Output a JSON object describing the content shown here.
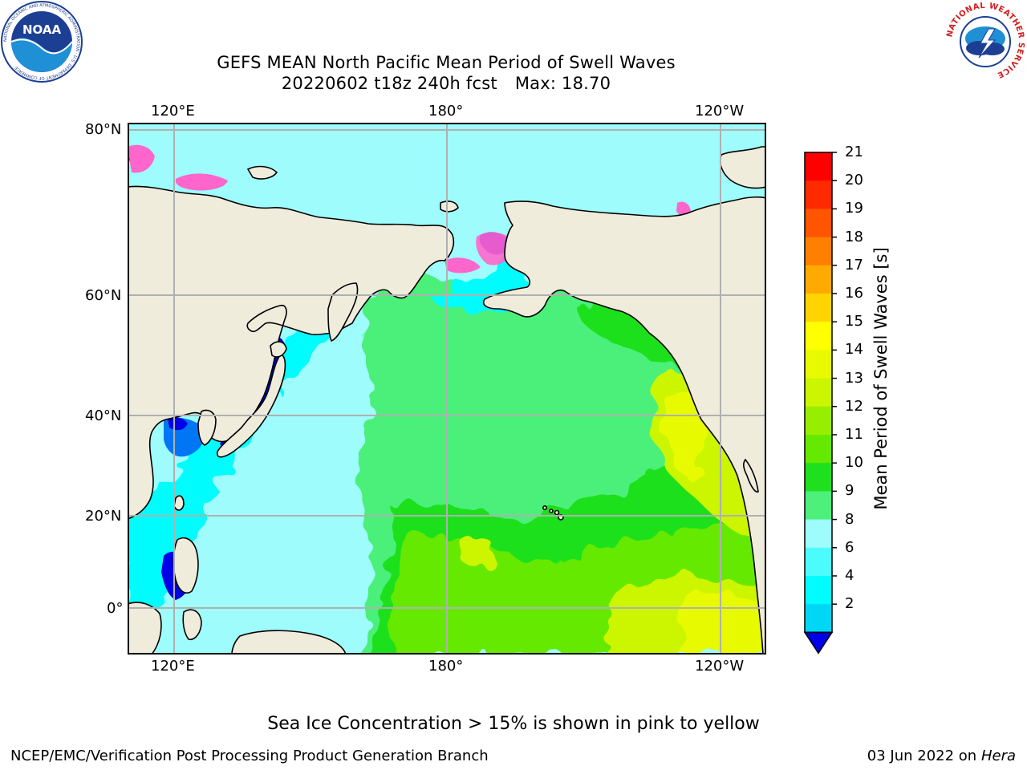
{
  "title": {
    "line1": "GEFS MEAN North Pacific Mean Period of Swell Waves",
    "line2_run": "20220602 t18z 240h fcst",
    "line2_max": "Max: 18.70"
  },
  "map": {
    "lon_labels": [
      "120°E",
      "180°",
      "120°W"
    ],
    "lat_labels": [
      "80°N",
      "60°N",
      "40°N",
      "20°N",
      "0°"
    ],
    "region": "North Pacific",
    "land_color": "#efecdc",
    "coast_color": "#000000",
    "grid_color": "#b0b0b0"
  },
  "colorbar": {
    "label": "Mean Period of Swell Waves [s]",
    "ticks": [
      "21",
      "20",
      "19",
      "18",
      "17",
      "16",
      "15",
      "14",
      "13",
      "12",
      "11",
      "10",
      "9",
      "8",
      "6",
      "4",
      "2"
    ],
    "colors": [
      "#ff0000",
      "#ff2a00",
      "#ff5500",
      "#ff7f00",
      "#ffaa00",
      "#ffd400",
      "#ffff00",
      "#e8fa00",
      "#ccf500",
      "#99ee00",
      "#66e900",
      "#1ee01e",
      "#4cf07a",
      "#9ffcfc",
      "#4cfcfc",
      "#00fcfc",
      "#00d7f7",
      "#0076f5"
    ],
    "extend_color": "#0000e6"
  },
  "swell_colors": {
    "deep_blue": "#0000e6",
    "blue": "#0076f5",
    "cyan": "#00fcfc",
    "light_cyan": "#9ffcfc",
    "pale_green": "#4cf07a",
    "green": "#1ee01e",
    "bright_green": "#66e900",
    "yellow_green": "#ccf500",
    "yellow": "#e8fa00",
    "ice_pink": "#ff66cc"
  },
  "note": "Sea Ice Concentration > 15% is shown in pink to yellow",
  "credit": {
    "left": "NCEP/EMC/Verification Post Processing Product Generation Branch",
    "date": "03 Jun 2022 on",
    "host": "Hera"
  },
  "logos": {
    "noaa": "NOAA",
    "noaa_ring": "NATIONAL OCEANIC AND ATMOSPHERIC ADMINISTRATION · U.S. DEPARTMENT OF COMMERCE",
    "nws_ring": "NATIONAL WEATHER SERVICE"
  }
}
